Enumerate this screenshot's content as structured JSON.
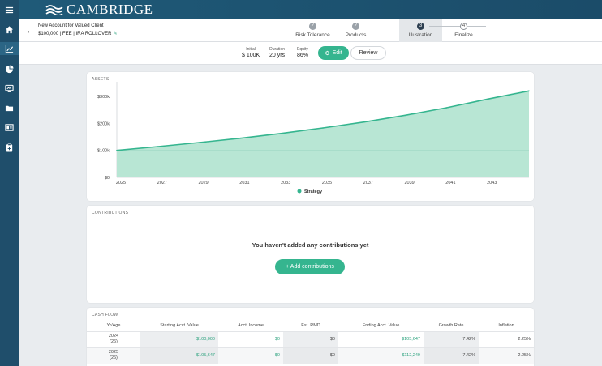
{
  "brand": {
    "name": "CAMBRIDGE"
  },
  "rail": {
    "icons": [
      "menu-icon",
      "home-icon",
      "chart-icon",
      "pie-icon",
      "monitor-icon",
      "folder-icon",
      "docs-icon",
      "clipboard-icon"
    ]
  },
  "account": {
    "title": "New Account for Valued Client",
    "subtitle": "$100,000 | FEE | IRA ROLLOVER"
  },
  "steps": [
    {
      "label": "Risk Tolerance",
      "state": "done",
      "mark": "✓"
    },
    {
      "label": "Products",
      "state": "done",
      "mark": "✓"
    },
    {
      "label": "Illustration",
      "state": "active",
      "mark": "3"
    },
    {
      "label": "Finalize",
      "state": "future",
      "mark": "4"
    }
  ],
  "params": {
    "initial_label": "Initial",
    "initial_value": "$ 100K",
    "duration_label": "Duration",
    "duration_value": "20 yrs",
    "equity_label": "Equity",
    "equity_value": "86%",
    "edit_label": "Edit",
    "review_label": "Review"
  },
  "assets": {
    "title": "ASSETS"
  },
  "chart_data": {
    "type": "area",
    "title": "",
    "xlabel": "",
    "ylabel": "",
    "x_ticks": [
      "2025",
      "2027",
      "2029",
      "2031",
      "2033",
      "2035",
      "2037",
      "2039",
      "2041",
      "2043"
    ],
    "y_ticks": [
      "$0",
      "$100k",
      "$200k",
      "$300k"
    ],
    "ylim": [
      0,
      330000
    ],
    "x_range": [
      2025,
      2045
    ],
    "grid": false,
    "legend_position": "bottom-center",
    "series": [
      {
        "name": "Strategy",
        "color": "#35b58f",
        "fill": "#b8e6d4",
        "x": [
          2025,
          2027,
          2029,
          2031,
          2033,
          2035,
          2037,
          2039,
          2041,
          2043,
          2045
        ],
        "values": [
          100000,
          114000,
          129000,
          145000,
          163000,
          183000,
          205000,
          230000,
          258000,
          290000,
          320000
        ]
      }
    ]
  },
  "contributions": {
    "title": "CONTRIBUTIONS",
    "empty_message": "You haven't added any contributions yet",
    "add_label": "+ Add contributions"
  },
  "cashflow": {
    "title": "CASH FLOW",
    "columns": [
      "Yr/Age",
      "Starting Acct. Value",
      "Acct. Income",
      "Est. RMD",
      "Ending Acct. Value",
      "Growth Rate",
      "Inflation"
    ],
    "rows": [
      {
        "year": "2024",
        "age": "(26)",
        "start": "$100,000",
        "income": "$0",
        "rmd": "$0",
        "end": "$105,647",
        "growth": "7.42%",
        "inflation": "2.25%"
      },
      {
        "year": "2025",
        "age": "(26)",
        "start": "$105,647",
        "income": "$0",
        "rmd": "$0",
        "end": "$112,249",
        "growth": "7.42%",
        "inflation": "2.25%"
      }
    ]
  }
}
